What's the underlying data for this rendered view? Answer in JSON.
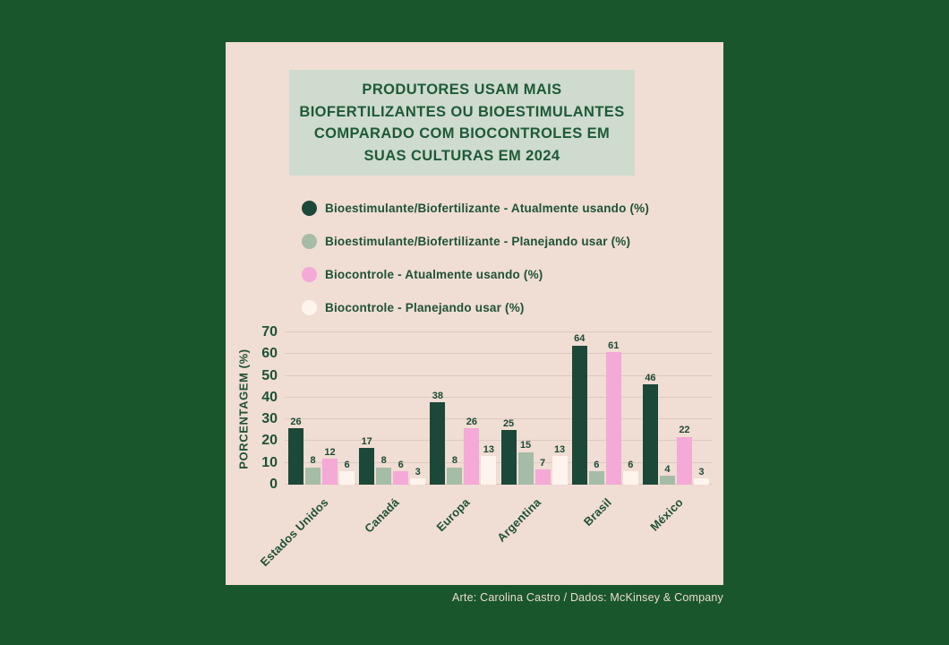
{
  "title": "PRODUTORES USAM MAIS BIOFERTILIZANTES OU BIOESTIMULANTES COMPARADO COM BIOCONTROLES EM SUAS CULTURAS EM 2024",
  "credit": "Arte: Carolina Castro / Dados: McKinsey & Company",
  "colors": {
    "page_background": "#19562c",
    "card_background": "#f0ddd3",
    "title_box_background": "#cedbce",
    "text_green": "#1e5238",
    "gridline": "#ddc9bf",
    "credit_text": "#ecdad1"
  },
  "chart_data": {
    "type": "bar",
    "title": "PRODUTORES USAM MAIS BIOFERTILIZANTES OU BIOESTIMULANTES COMPARADO COM BIOCONTROLES EM SUAS CULTURAS EM 2024",
    "xlabel": "",
    "ylabel": "PORCENTAGEM (%)",
    "ylim": [
      0,
      70
    ],
    "yticks": [
      0,
      10,
      20,
      30,
      40,
      50,
      60,
      70
    ],
    "grid": true,
    "legend_position": "top-left",
    "categories": [
      "Estados Unidos",
      "Canadá",
      "Europa",
      "Argentina",
      "Brasil",
      "México"
    ],
    "series": [
      {
        "name": "Bioestimulante/Biofertilizante - Atualmente usando (%)",
        "color": "#1b4838",
        "values": [
          26,
          17,
          38,
          25,
          64,
          46
        ]
      },
      {
        "name": "Bioestimulante/Biofertilizante - Planejando usar (%)",
        "color": "#a5bca7",
        "values": [
          8,
          8,
          8,
          15,
          6,
          4
        ]
      },
      {
        "name": "Biocontrole - Atualmente usando (%)",
        "color": "#f4a9d6",
        "values": [
          12,
          6,
          26,
          7,
          61,
          22
        ]
      },
      {
        "name": "Biocontrole - Planejando usar (%)",
        "color": "#fdf5ed",
        "values": [
          6,
          3,
          13,
          13,
          6,
          3
        ]
      }
    ],
    "credit": "Arte: Carolina Castro / Dados: McKinsey & Company"
  }
}
